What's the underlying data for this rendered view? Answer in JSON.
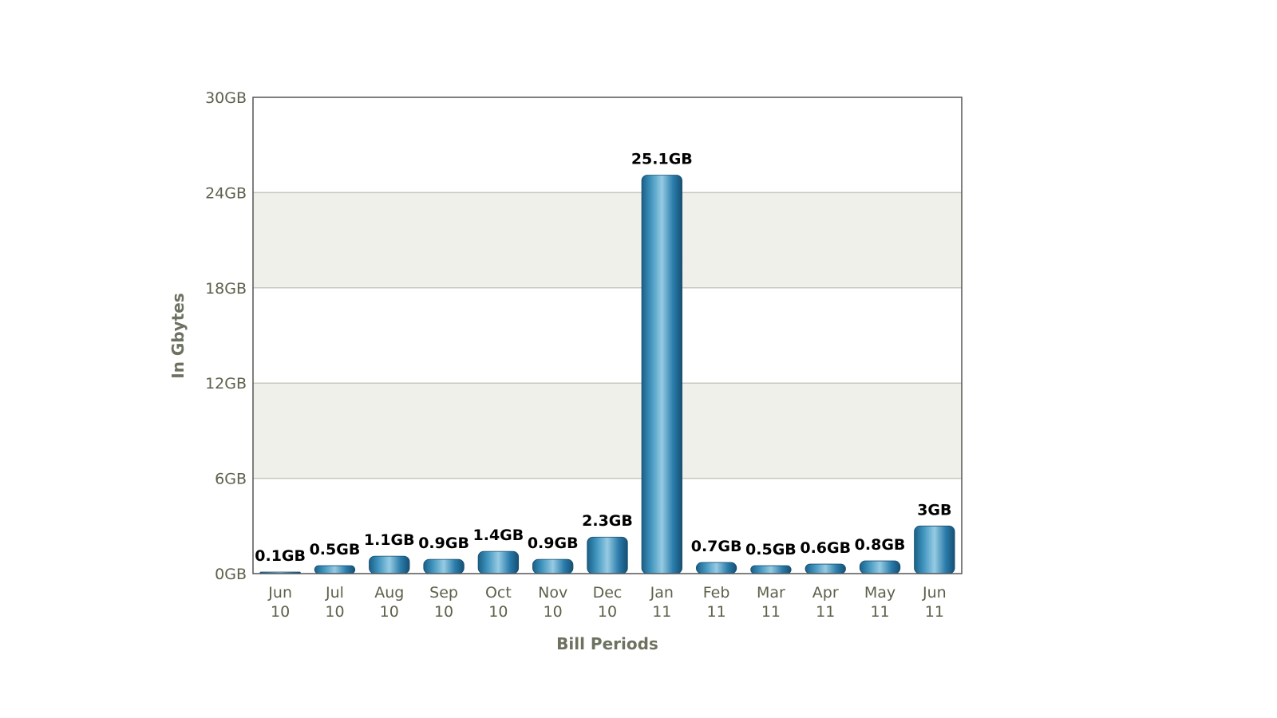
{
  "chart_data": {
    "type": "bar",
    "xlabel": "Bill Periods",
    "ylabel": "In Gbytes",
    "ylim": [
      0,
      30
    ],
    "y_ticks": [
      {
        "value": 0,
        "label": "0GB"
      },
      {
        "value": 6,
        "label": "6GB"
      },
      {
        "value": 12,
        "label": "12GB"
      },
      {
        "value": 18,
        "label": "18GB"
      },
      {
        "value": 24,
        "label": "24GB"
      },
      {
        "value": 30,
        "label": "30GB"
      }
    ],
    "categories": [
      [
        "Jun",
        "10"
      ],
      [
        "Jul",
        "10"
      ],
      [
        "Aug",
        "10"
      ],
      [
        "Sep",
        "10"
      ],
      [
        "Oct",
        "10"
      ],
      [
        "Nov",
        "10"
      ],
      [
        "Dec",
        "10"
      ],
      [
        "Jan",
        "11"
      ],
      [
        "Feb",
        "11"
      ],
      [
        "Mar",
        "11"
      ],
      [
        "Apr",
        "11"
      ],
      [
        "May",
        "11"
      ],
      [
        "Jun",
        "11"
      ]
    ],
    "values": [
      0.1,
      0.5,
      1.1,
      0.9,
      1.4,
      0.9,
      2.3,
      25.1,
      0.7,
      0.5,
      0.6,
      0.8,
      3
    ],
    "data_labels": [
      "0.1GB",
      "0.5GB",
      "1.1GB",
      "0.9GB",
      "1.4GB",
      "0.9GB",
      "2.3GB",
      "25.1GB",
      "0.7GB",
      "0.5GB",
      "0.6GB",
      "0.8GB",
      "3GB"
    ],
    "grid": true,
    "colors": {
      "bar": "#1f6f9c",
      "bar_highlight": "#8cc4df",
      "band_alt": "#f0f0ea",
      "band": "#ffffff",
      "gridline": "#c8c8c0",
      "frame": "#555555",
      "tick_text": "#5e604a",
      "axis_title": "#6d7260",
      "data_label": "#000000"
    }
  }
}
